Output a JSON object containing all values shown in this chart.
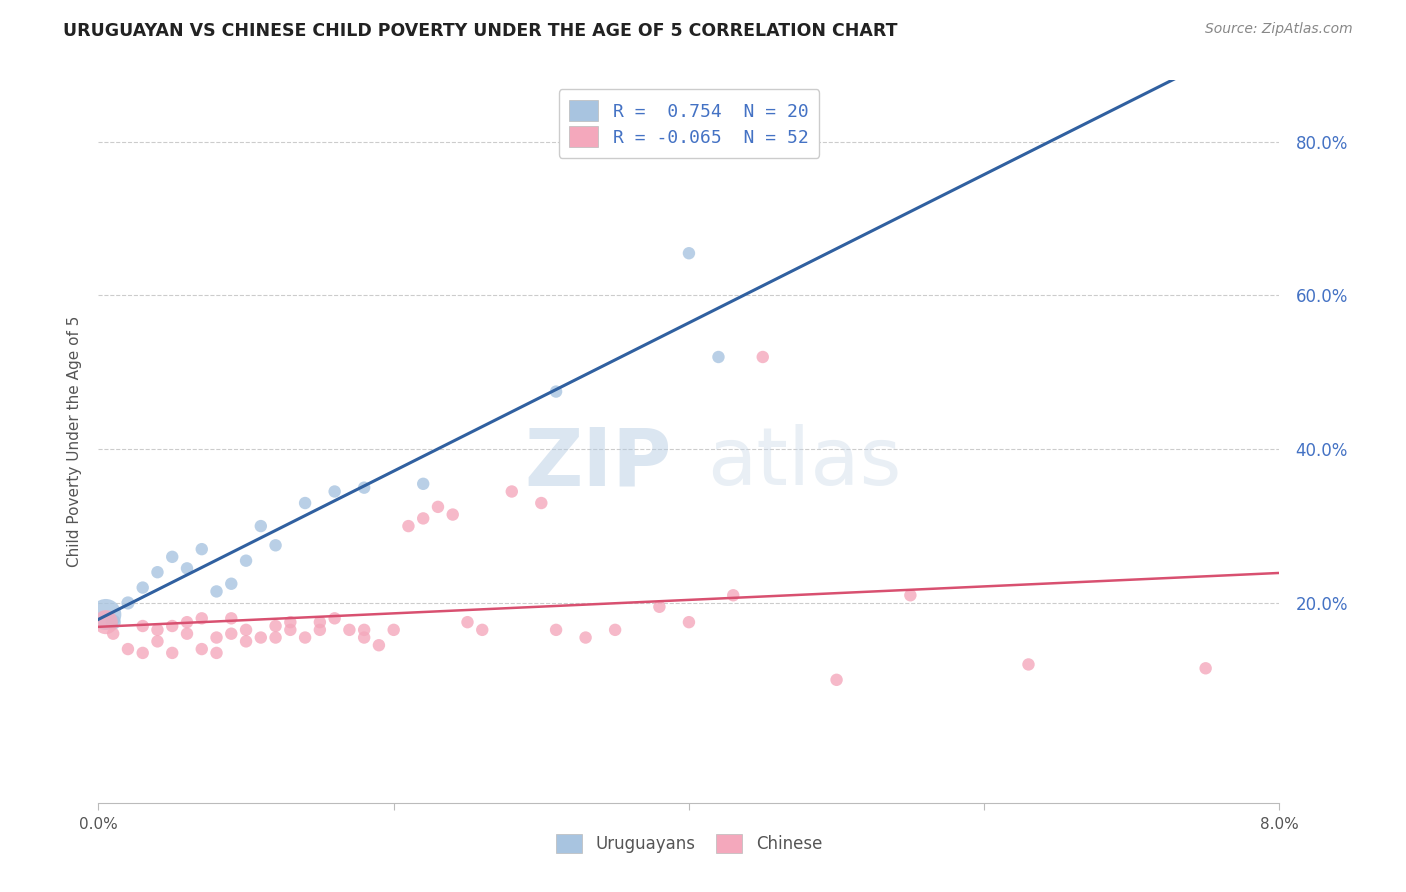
{
  "title": "URUGUAYAN VS CHINESE CHILD POVERTY UNDER THE AGE OF 5 CORRELATION CHART",
  "source": "Source: ZipAtlas.com",
  "ylabel": "Child Poverty Under the Age of 5",
  "watermark_zip": "ZIP",
  "watermark_atlas": "atlas",
  "legend_blue_label": "R =  0.754  N = 20",
  "legend_pink_label": "R = -0.065  N = 52",
  "legend_blue_bottom": "Uruguayans",
  "legend_pink_bottom": "Chinese",
  "blue_scatter_color": "#a8c4e0",
  "pink_scatter_color": "#f4a8bc",
  "blue_line_color": "#3060a0",
  "pink_line_color": "#d85070",
  "xmin": 0.0,
  "xmax": 0.08,
  "ymin": -0.06,
  "ymax": 0.88,
  "ytick_vals": [
    0.2,
    0.4,
    0.6,
    0.8
  ],
  "ytick_labels": [
    "20.0%",
    "40.0%",
    "60.0%",
    "80.0%"
  ],
  "uruguayan_x": [
    0.0005,
    0.001,
    0.002,
    0.003,
    0.004,
    0.005,
    0.006,
    0.007,
    0.008,
    0.009,
    0.01,
    0.011,
    0.012,
    0.014,
    0.016,
    0.018,
    0.022,
    0.031,
    0.04,
    0.042
  ],
  "uruguayan_y": [
    0.185,
    0.175,
    0.2,
    0.22,
    0.24,
    0.26,
    0.245,
    0.27,
    0.215,
    0.225,
    0.255,
    0.3,
    0.275,
    0.33,
    0.345,
    0.35,
    0.355,
    0.475,
    0.655,
    0.52
  ],
  "uruguayan_size": [
    500,
    120,
    90,
    80,
    80,
    80,
    80,
    80,
    80,
    80,
    80,
    80,
    80,
    80,
    80,
    80,
    80,
    80,
    80,
    80
  ],
  "chinese_x": [
    0.0005,
    0.001,
    0.002,
    0.003,
    0.003,
    0.004,
    0.004,
    0.005,
    0.005,
    0.006,
    0.006,
    0.007,
    0.007,
    0.008,
    0.008,
    0.009,
    0.009,
    0.01,
    0.01,
    0.011,
    0.012,
    0.012,
    0.013,
    0.013,
    0.014,
    0.015,
    0.015,
    0.016,
    0.017,
    0.018,
    0.018,
    0.019,
    0.02,
    0.021,
    0.022,
    0.023,
    0.024,
    0.025,
    0.026,
    0.028,
    0.03,
    0.031,
    0.033,
    0.035,
    0.038,
    0.04,
    0.043,
    0.045,
    0.05,
    0.055,
    0.063,
    0.075
  ],
  "chinese_y": [
    0.175,
    0.16,
    0.14,
    0.17,
    0.135,
    0.15,
    0.165,
    0.17,
    0.135,
    0.16,
    0.175,
    0.18,
    0.14,
    0.155,
    0.135,
    0.16,
    0.18,
    0.15,
    0.165,
    0.155,
    0.17,
    0.155,
    0.165,
    0.175,
    0.155,
    0.165,
    0.175,
    0.18,
    0.165,
    0.155,
    0.165,
    0.145,
    0.165,
    0.3,
    0.31,
    0.325,
    0.315,
    0.175,
    0.165,
    0.345,
    0.33,
    0.165,
    0.155,
    0.165,
    0.195,
    0.175,
    0.21,
    0.52,
    0.1,
    0.21,
    0.12,
    0.115
  ],
  "chinese_size": [
    300,
    80,
    80,
    80,
    80,
    80,
    80,
    80,
    80,
    80,
    80,
    80,
    80,
    80,
    80,
    80,
    80,
    80,
    80,
    80,
    80,
    80,
    80,
    80,
    80,
    80,
    80,
    80,
    80,
    80,
    80,
    80,
    80,
    80,
    80,
    80,
    80,
    80,
    80,
    80,
    80,
    80,
    80,
    80,
    80,
    80,
    80,
    80,
    80,
    80,
    80,
    80
  ]
}
